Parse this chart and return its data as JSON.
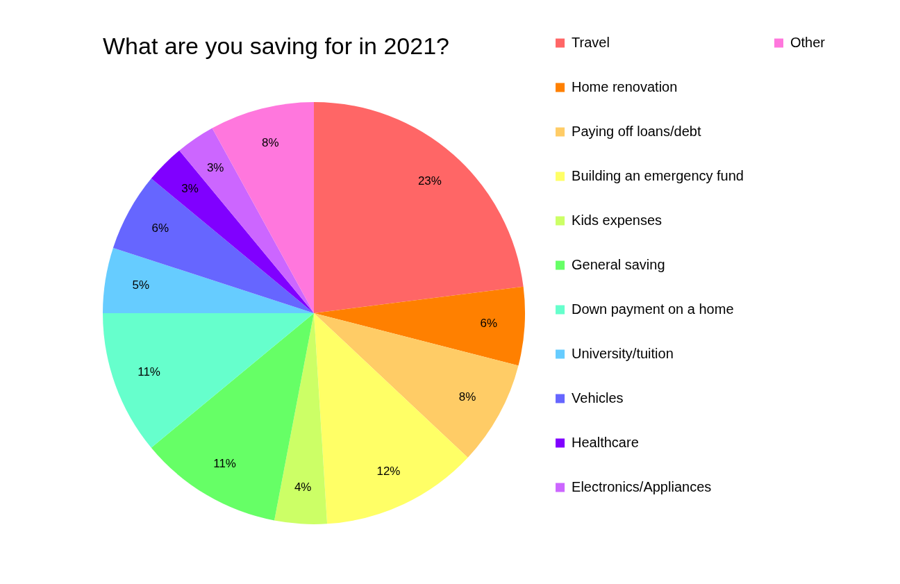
{
  "chart_data": {
    "type": "pie",
    "title": "What are you saving for in 2021?",
    "categories": [
      "Travel",
      "Home renovation",
      "Paying off loans/debt",
      "Building an emergency fund",
      "Kids expenses",
      "General saving",
      "Down payment on a home",
      "University/tuition",
      "Vehicles",
      "Healthcare",
      "Electronics/Appliances",
      "Other"
    ],
    "values": [
      23,
      6,
      8,
      12,
      4,
      11,
      11,
      5,
      6,
      3,
      3,
      8
    ],
    "value_labels": [
      "23%",
      "6%",
      "8%",
      "12%",
      "4%",
      "11%",
      "11%",
      "5%",
      "6%",
      "3%",
      "3%",
      "8%"
    ],
    "colors": [
      "#ff6666",
      "#ff8000",
      "#ffcc66",
      "#ffff66",
      "#ccff66",
      "#66ff66",
      "#66ffcc",
      "#66ccff",
      "#6666ff",
      "#8000ff",
      "#cc66ff",
      "#ff77dd"
    ],
    "legend": "right"
  }
}
